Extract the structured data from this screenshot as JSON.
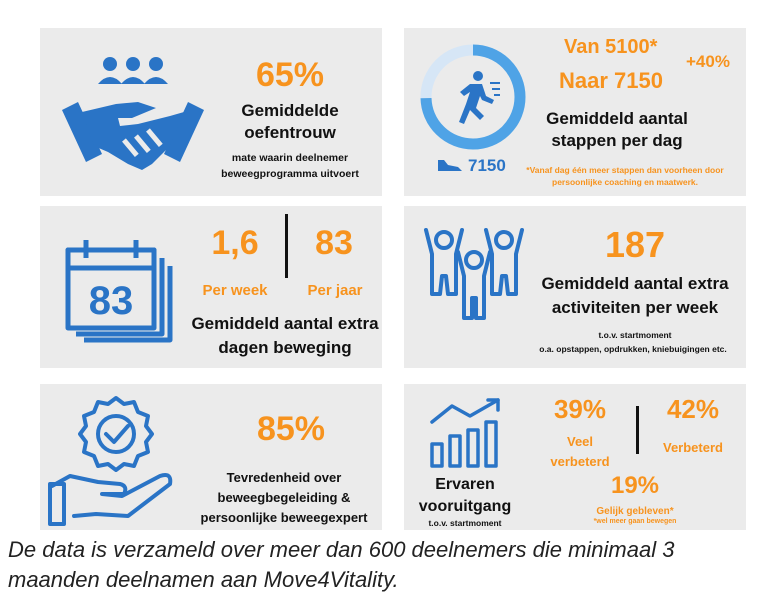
{
  "card1": {
    "pct": "65%",
    "title": "Gemiddelde oefentrouw",
    "desc": "mate waarin deelnemer beweegprogramma uitvoert",
    "icon": "handshake-icon"
  },
  "card2": {
    "from": "Van 5100*",
    "to": "Naar 7150",
    "increase": "+40%",
    "title": "Gemiddeld aantal stappen per dag",
    "steps": "7150",
    "note": "*Vanaf dag één meer stappen dan voorheen door persoonlijke coaching en maatwerk.",
    "icon": "running-person-icon",
    "shoe_icon": "shoe-icon"
  },
  "card3": {
    "calendar_number": "83",
    "per_week_value": "1,6",
    "per_week_label": "Per week",
    "per_year_value": "83",
    "per_year_label": "Per jaar",
    "title": "Gemiddeld aantal extra dagen beweging",
    "icon": "calendar-icon"
  },
  "card4": {
    "value": "187",
    "title": "Gemiddeld aantal extra activiteiten per week",
    "sub1": "t.o.v. startmoment",
    "sub2": "o.a. opstappen, opdrukken, kniebuigingen etc.",
    "icon": "cheering-group-icon"
  },
  "card5": {
    "pct": "85%",
    "title": "Tevredenheid over beweegbegeleiding & persoonlijke beweegexpert",
    "icon": "hand-badge-check-icon"
  },
  "card6": {
    "title": "Ervaren vooruitgang",
    "sub": "t.o.v. startmoment",
    "veel_pct": "39%",
    "veel_label": "Veel verbeterd",
    "verb_pct": "42%",
    "verb_label": "Verbeterd",
    "gelijk_pct": "19%",
    "gelijk_label": "Gelijk gebleven*",
    "gelijk_note": "*wel meer gaan bewegen",
    "icon": "growth-chart-icon"
  },
  "footer": {
    "line1": "De data is verzameld over meer dan 600 deelnemers die minimaal 3",
    "line2": "maanden deelnamen aan Move4Vitality."
  },
  "colors": {
    "accent": "#f7931e",
    "icon_blue": "#2a74c6",
    "card_bg": "#ebebeb"
  }
}
